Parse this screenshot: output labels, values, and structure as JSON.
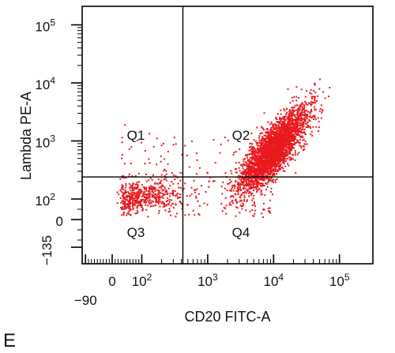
{
  "panel_label": "E",
  "colors": {
    "points": "#e8191e",
    "axes": "#000000"
  },
  "chart_data": {
    "type": "scatter",
    "scale": "biexponential",
    "xlabel": "CD20 FITC-A",
    "ylabel": "Lambda PE-A",
    "x_ticks": [
      {
        "value": -90,
        "label": "−90"
      },
      {
        "value": 0,
        "label": "0"
      },
      {
        "value": 100,
        "label": "10^2"
      },
      {
        "value": 1000,
        "label": "10^3"
      },
      {
        "value": 10000,
        "label": "10^4"
      },
      {
        "value": 100000,
        "label": "10^5"
      }
    ],
    "y_ticks": [
      {
        "value": -135,
        "label": "−135"
      },
      {
        "value": 0,
        "label": "0"
      },
      {
        "value": 100,
        "label": "10^2"
      },
      {
        "value": 1000,
        "label": "10^3"
      },
      {
        "value": 10000,
        "label": "10^4"
      },
      {
        "value": 100000,
        "label": "10^5"
      }
    ],
    "gate": {
      "x": 420,
      "y": 240
    },
    "quadrants": [
      {
        "label": "Q1",
        "position": "top-left"
      },
      {
        "label": "Q2",
        "position": "top-right"
      },
      {
        "label": "Q3",
        "position": "bottom-left"
      },
      {
        "label": "Q4",
        "position": "bottom-right"
      }
    ],
    "populations": [
      {
        "name": "CD20+ Lambda+ cluster",
        "approx_points": 3200,
        "x_center": 10000,
        "y_center": 700,
        "x_spread_decades": 0.25,
        "y_spread_decades": 0.35
      },
      {
        "name": "CD20- Lambda- cluster",
        "approx_points": 450,
        "x_center": 110,
        "y_center": 110,
        "x_spread_decades": 0.3,
        "y_spread_decades": 0.15
      },
      {
        "name": "Scattered events",
        "approx_points": 250,
        "x_range": [
          30,
          10000
        ],
        "y_range": [
          10,
          2000
        ]
      }
    ]
  }
}
